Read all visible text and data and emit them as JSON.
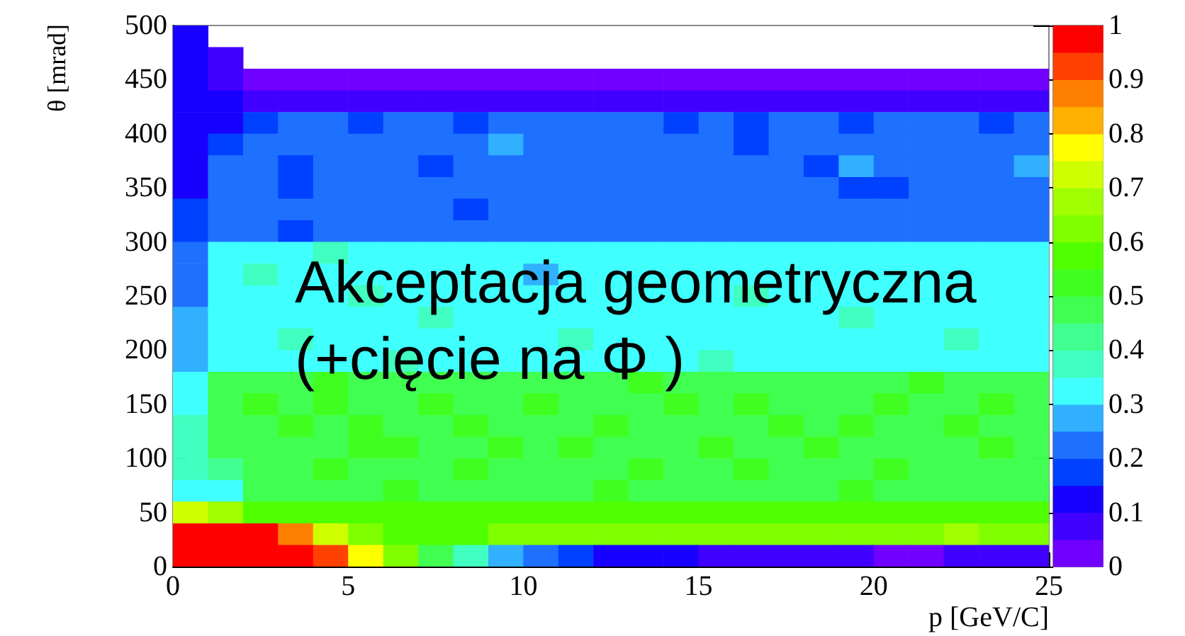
{
  "chart_data": {
    "type": "heatmap",
    "xlabel": "p [GeV/C]",
    "ylabel": "θ [mrad]",
    "annotations": [
      "Akceptacja geometryczna",
      "(+cięcie na Φ )"
    ],
    "xlim": [
      0,
      25
    ],
    "xticks": [
      0,
      5,
      10,
      15,
      20,
      25
    ],
    "ylim": [
      0,
      500
    ],
    "yticks": [
      0,
      50,
      100,
      150,
      200,
      250,
      300,
      350,
      400,
      450,
      500
    ],
    "clim": [
      0,
      1
    ],
    "cticks": [
      0,
      0.1,
      0.2,
      0.3,
      0.4,
      0.5,
      0.6,
      0.7,
      0.8,
      0.9,
      1
    ],
    "cells": [
      [
        0.12,
        null,
        null,
        null,
        null,
        null,
        null,
        null,
        null,
        null,
        null,
        null,
        null,
        null,
        null,
        null,
        null,
        null,
        null,
        null,
        null,
        null,
        null,
        null,
        null
      ],
      [
        0.12,
        0.07,
        null,
        null,
        null,
        null,
        null,
        null,
        null,
        null,
        null,
        null,
        null,
        null,
        null,
        null,
        null,
        null,
        null,
        null,
        null,
        null,
        null,
        null,
        null
      ],
      [
        0.12,
        0.07,
        0.03,
        0.03,
        0.03,
        0.03,
        0.03,
        0.03,
        0.03,
        0.03,
        0.03,
        0.03,
        0.03,
        0.03,
        0.03,
        0.03,
        0.03,
        0.03,
        0.03,
        0.03,
        0.03,
        0.03,
        0.03,
        0.03,
        0.03
      ],
      [
        0.12,
        0.12,
        0.07,
        0.07,
        0.07,
        0.07,
        0.07,
        0.07,
        0.07,
        0.07,
        0.07,
        0.07,
        0.07,
        0.07,
        0.07,
        0.07,
        0.07,
        0.07,
        0.07,
        0.07,
        0.07,
        0.07,
        0.07,
        0.07,
        0.07
      ],
      [
        0.12,
        0.12,
        0.17,
        0.22,
        0.22,
        0.17,
        0.22,
        0.22,
        0.17,
        0.22,
        0.22,
        0.22,
        0.22,
        0.22,
        0.17,
        0.22,
        0.17,
        0.22,
        0.22,
        0.17,
        0.22,
        0.22,
        0.22,
        0.17,
        0.22
      ],
      [
        0.12,
        0.17,
        0.22,
        0.22,
        0.22,
        0.22,
        0.22,
        0.22,
        0.22,
        0.27,
        0.22,
        0.22,
        0.22,
        0.22,
        0.22,
        0.22,
        0.17,
        0.22,
        0.22,
        0.22,
        0.22,
        0.22,
        0.22,
        0.22,
        0.22
      ],
      [
        0.12,
        0.22,
        0.22,
        0.17,
        0.22,
        0.22,
        0.22,
        0.17,
        0.22,
        0.22,
        0.22,
        0.22,
        0.22,
        0.22,
        0.22,
        0.22,
        0.22,
        0.22,
        0.17,
        0.27,
        0.22,
        0.22,
        0.22,
        0.22,
        0.27
      ],
      [
        0.12,
        0.22,
        0.22,
        0.17,
        0.22,
        0.22,
        0.22,
        0.22,
        0.22,
        0.22,
        0.22,
        0.22,
        0.22,
        0.22,
        0.22,
        0.22,
        0.22,
        0.22,
        0.22,
        0.17,
        0.17,
        0.22,
        0.22,
        0.22,
        0.22
      ],
      [
        0.17,
        0.22,
        0.22,
        0.22,
        0.22,
        0.22,
        0.22,
        0.22,
        0.17,
        0.22,
        0.22,
        0.22,
        0.22,
        0.22,
        0.22,
        0.22,
        0.22,
        0.22,
        0.22,
        0.22,
        0.22,
        0.22,
        0.22,
        0.22,
        0.22
      ],
      [
        0.17,
        0.22,
        0.22,
        0.17,
        0.22,
        0.22,
        0.22,
        0.22,
        0.22,
        0.22,
        0.22,
        0.22,
        0.22,
        0.22,
        0.22,
        0.22,
        0.22,
        0.22,
        0.22,
        0.22,
        0.22,
        0.22,
        0.22,
        0.22,
        0.22
      ],
      [
        0.22,
        0.32,
        0.32,
        0.32,
        0.37,
        0.32,
        0.32,
        0.32,
        0.32,
        0.32,
        0.32,
        0.32,
        0.32,
        0.32,
        0.32,
        0.32,
        0.32,
        0.32,
        0.32,
        0.32,
        0.32,
        0.32,
        0.32,
        0.32,
        0.32
      ],
      [
        0.22,
        0.32,
        0.37,
        0.32,
        0.32,
        0.32,
        0.32,
        0.32,
        0.32,
        0.32,
        0.27,
        0.32,
        0.32,
        0.32,
        0.32,
        0.32,
        0.32,
        0.32,
        0.32,
        0.32,
        0.32,
        0.32,
        0.32,
        0.32,
        0.32
      ],
      [
        0.22,
        0.32,
        0.32,
        0.32,
        0.32,
        0.37,
        0.32,
        0.32,
        0.32,
        0.32,
        0.32,
        0.32,
        0.32,
        0.32,
        0.32,
        0.32,
        0.37,
        0.32,
        0.32,
        0.32,
        0.32,
        0.32,
        0.32,
        0.32,
        0.32
      ],
      [
        0.27,
        0.32,
        0.32,
        0.32,
        0.32,
        0.32,
        0.32,
        0.37,
        0.32,
        0.32,
        0.32,
        0.32,
        0.32,
        0.32,
        0.32,
        0.32,
        0.32,
        0.32,
        0.32,
        0.37,
        0.32,
        0.32,
        0.32,
        0.32,
        0.32
      ],
      [
        0.27,
        0.32,
        0.32,
        0.37,
        0.32,
        0.32,
        0.32,
        0.32,
        0.32,
        0.32,
        0.32,
        0.37,
        0.32,
        0.32,
        0.32,
        0.32,
        0.32,
        0.32,
        0.32,
        0.32,
        0.32,
        0.32,
        0.37,
        0.32,
        0.32
      ],
      [
        0.27,
        0.32,
        0.32,
        0.32,
        0.32,
        0.32,
        0.37,
        0.32,
        0.32,
        0.32,
        0.32,
        0.32,
        0.32,
        0.32,
        0.32,
        0.37,
        0.32,
        0.32,
        0.32,
        0.32,
        0.32,
        0.32,
        0.32,
        0.32,
        0.32
      ],
      [
        0.32,
        0.45,
        0.45,
        0.45,
        0.5,
        0.45,
        0.45,
        0.45,
        0.45,
        0.45,
        0.45,
        0.45,
        0.45,
        0.5,
        0.45,
        0.45,
        0.45,
        0.45,
        0.45,
        0.45,
        0.45,
        0.5,
        0.45,
        0.45,
        0.45
      ],
      [
        0.32,
        0.45,
        0.5,
        0.45,
        0.5,
        0.45,
        0.45,
        0.5,
        0.45,
        0.45,
        0.5,
        0.45,
        0.45,
        0.45,
        0.5,
        0.45,
        0.5,
        0.45,
        0.45,
        0.45,
        0.5,
        0.45,
        0.45,
        0.5,
        0.45
      ],
      [
        0.37,
        0.45,
        0.45,
        0.5,
        0.45,
        0.5,
        0.45,
        0.45,
        0.5,
        0.45,
        0.45,
        0.45,
        0.5,
        0.45,
        0.45,
        0.45,
        0.45,
        0.5,
        0.45,
        0.5,
        0.45,
        0.45,
        0.5,
        0.45,
        0.45
      ],
      [
        0.37,
        0.45,
        0.45,
        0.45,
        0.45,
        0.5,
        0.5,
        0.45,
        0.45,
        0.5,
        0.45,
        0.5,
        0.45,
        0.45,
        0.45,
        0.5,
        0.45,
        0.45,
        0.5,
        0.45,
        0.45,
        0.45,
        0.45,
        0.5,
        0.45
      ],
      [
        0.37,
        0.4,
        0.45,
        0.45,
        0.5,
        0.45,
        0.45,
        0.45,
        0.5,
        0.45,
        0.45,
        0.45,
        0.45,
        0.5,
        0.45,
        0.45,
        0.5,
        0.45,
        0.45,
        0.45,
        0.5,
        0.45,
        0.45,
        0.45,
        0.45
      ],
      [
        0.32,
        0.32,
        0.45,
        0.45,
        0.45,
        0.45,
        0.5,
        0.45,
        0.45,
        0.45,
        0.45,
        0.45,
        0.5,
        0.45,
        0.45,
        0.45,
        0.45,
        0.45,
        0.45,
        0.5,
        0.45,
        0.45,
        0.45,
        0.45,
        0.45
      ],
      [
        0.72,
        0.65,
        0.55,
        0.55,
        0.55,
        0.55,
        0.55,
        0.55,
        0.55,
        0.55,
        0.55,
        0.55,
        0.55,
        0.55,
        0.55,
        0.55,
        0.55,
        0.55,
        0.55,
        0.55,
        0.55,
        0.55,
        0.55,
        0.55,
        0.55
      ],
      [
        0.97,
        0.97,
        0.97,
        0.87,
        0.72,
        0.6,
        0.55,
        0.55,
        0.55,
        0.6,
        0.62,
        0.62,
        0.62,
        0.62,
        0.62,
        0.62,
        0.62,
        0.62,
        0.62,
        0.62,
        0.62,
        0.62,
        0.67,
        0.62,
        0.62
      ],
      [
        0.97,
        0.97,
        0.97,
        0.97,
        0.92,
        0.77,
        0.62,
        0.47,
        0.37,
        0.27,
        0.22,
        0.17,
        0.12,
        0.12,
        0.12,
        0.07,
        0.07,
        0.07,
        0.07,
        0.07,
        0.03,
        0.03,
        0.07,
        0.07,
        0.07
      ]
    ]
  }
}
